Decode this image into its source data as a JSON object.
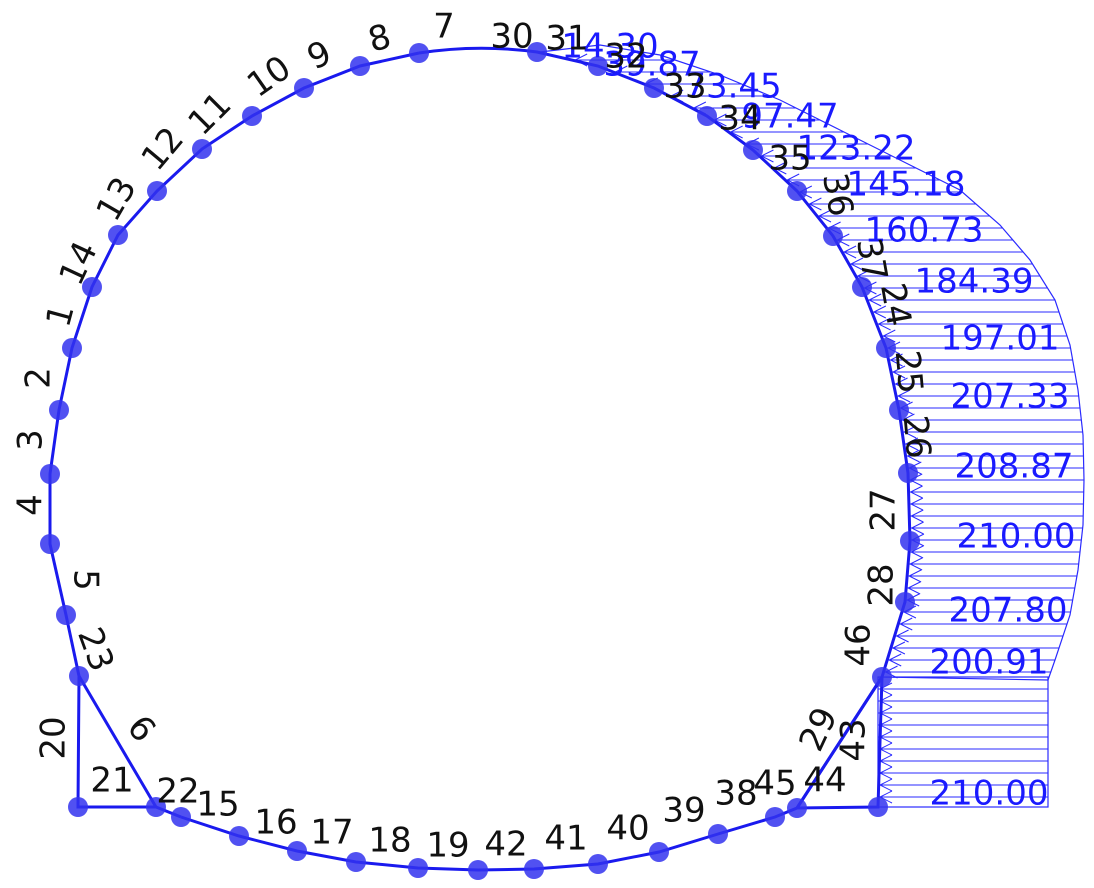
{
  "colors": {
    "structure": "#1a1aee",
    "node": "#3333ee",
    "load": "#2a2aff",
    "node_label": "#111111",
    "load_label": "#1a1aff"
  },
  "nodes": [
    {
      "id": "30",
      "label": "30"
    },
    {
      "id": "31",
      "label": "31"
    },
    {
      "id": "32",
      "label": "32"
    },
    {
      "id": "33",
      "label": "33"
    },
    {
      "id": "34",
      "label": "34"
    },
    {
      "id": "35",
      "label": "35"
    },
    {
      "id": "36",
      "label": "36"
    },
    {
      "id": "37",
      "label": "37"
    },
    {
      "id": "24",
      "label": "24"
    },
    {
      "id": "25",
      "label": "25"
    },
    {
      "id": "26",
      "label": "26"
    },
    {
      "id": "27",
      "label": "27"
    },
    {
      "id": "28",
      "label": "28"
    },
    {
      "id": "46",
      "label": "46"
    },
    {
      "id": "45",
      "label": "45"
    },
    {
      "id": "38",
      "label": "38"
    },
    {
      "id": "39",
      "label": "39"
    },
    {
      "id": "40",
      "label": "40"
    },
    {
      "id": "41",
      "label": "41"
    },
    {
      "id": "42",
      "label": "42"
    },
    {
      "id": "19",
      "label": "19"
    },
    {
      "id": "18",
      "label": "18"
    },
    {
      "id": "17",
      "label": "17"
    },
    {
      "id": "16",
      "label": "16"
    },
    {
      "id": "15",
      "label": "15"
    },
    {
      "id": "22",
      "label": "22"
    },
    {
      "id": "23",
      "label": "23"
    },
    {
      "id": "5",
      "label": "5"
    },
    {
      "id": "4",
      "label": "4"
    },
    {
      "id": "3",
      "label": "3"
    },
    {
      "id": "2",
      "label": "2"
    },
    {
      "id": "1",
      "label": "1"
    },
    {
      "id": "14",
      "label": "14"
    },
    {
      "id": "13",
      "label": "13"
    },
    {
      "id": "12",
      "label": "12"
    },
    {
      "id": "11",
      "label": "11"
    },
    {
      "id": "10",
      "label": "10"
    },
    {
      "id": "9",
      "label": "9"
    },
    {
      "id": "8",
      "label": "8"
    },
    {
      "id": "7",
      "label": "7"
    },
    {
      "id": "20",
      "label": "20"
    },
    {
      "id": "21",
      "label": "21"
    },
    {
      "id": "6",
      "label": "6"
    },
    {
      "id": "29",
      "label": "29"
    },
    {
      "id": "43",
      "label": "43"
    },
    {
      "id": "44",
      "label": "44"
    }
  ],
  "loads": [
    {
      "id": "l1",
      "label": "14.30"
    },
    {
      "id": "l2",
      "label": "39.87"
    },
    {
      "id": "l3",
      "label": "73.45"
    },
    {
      "id": "l4",
      "label": "97.47"
    },
    {
      "id": "l5",
      "label": "123.22"
    },
    {
      "id": "l6",
      "label": "145.18"
    },
    {
      "id": "l7",
      "label": "160.73"
    },
    {
      "id": "l8",
      "label": "184.39"
    },
    {
      "id": "l9",
      "label": "197.01"
    },
    {
      "id": "l10",
      "label": "207.33"
    },
    {
      "id": "l11",
      "label": "208.87"
    },
    {
      "id": "l12",
      "label": "210.00"
    },
    {
      "id": "l13",
      "label": "207.80"
    },
    {
      "id": "l14",
      "label": "200.91"
    },
    {
      "id": "l15",
      "label": "210.00"
    }
  ]
}
